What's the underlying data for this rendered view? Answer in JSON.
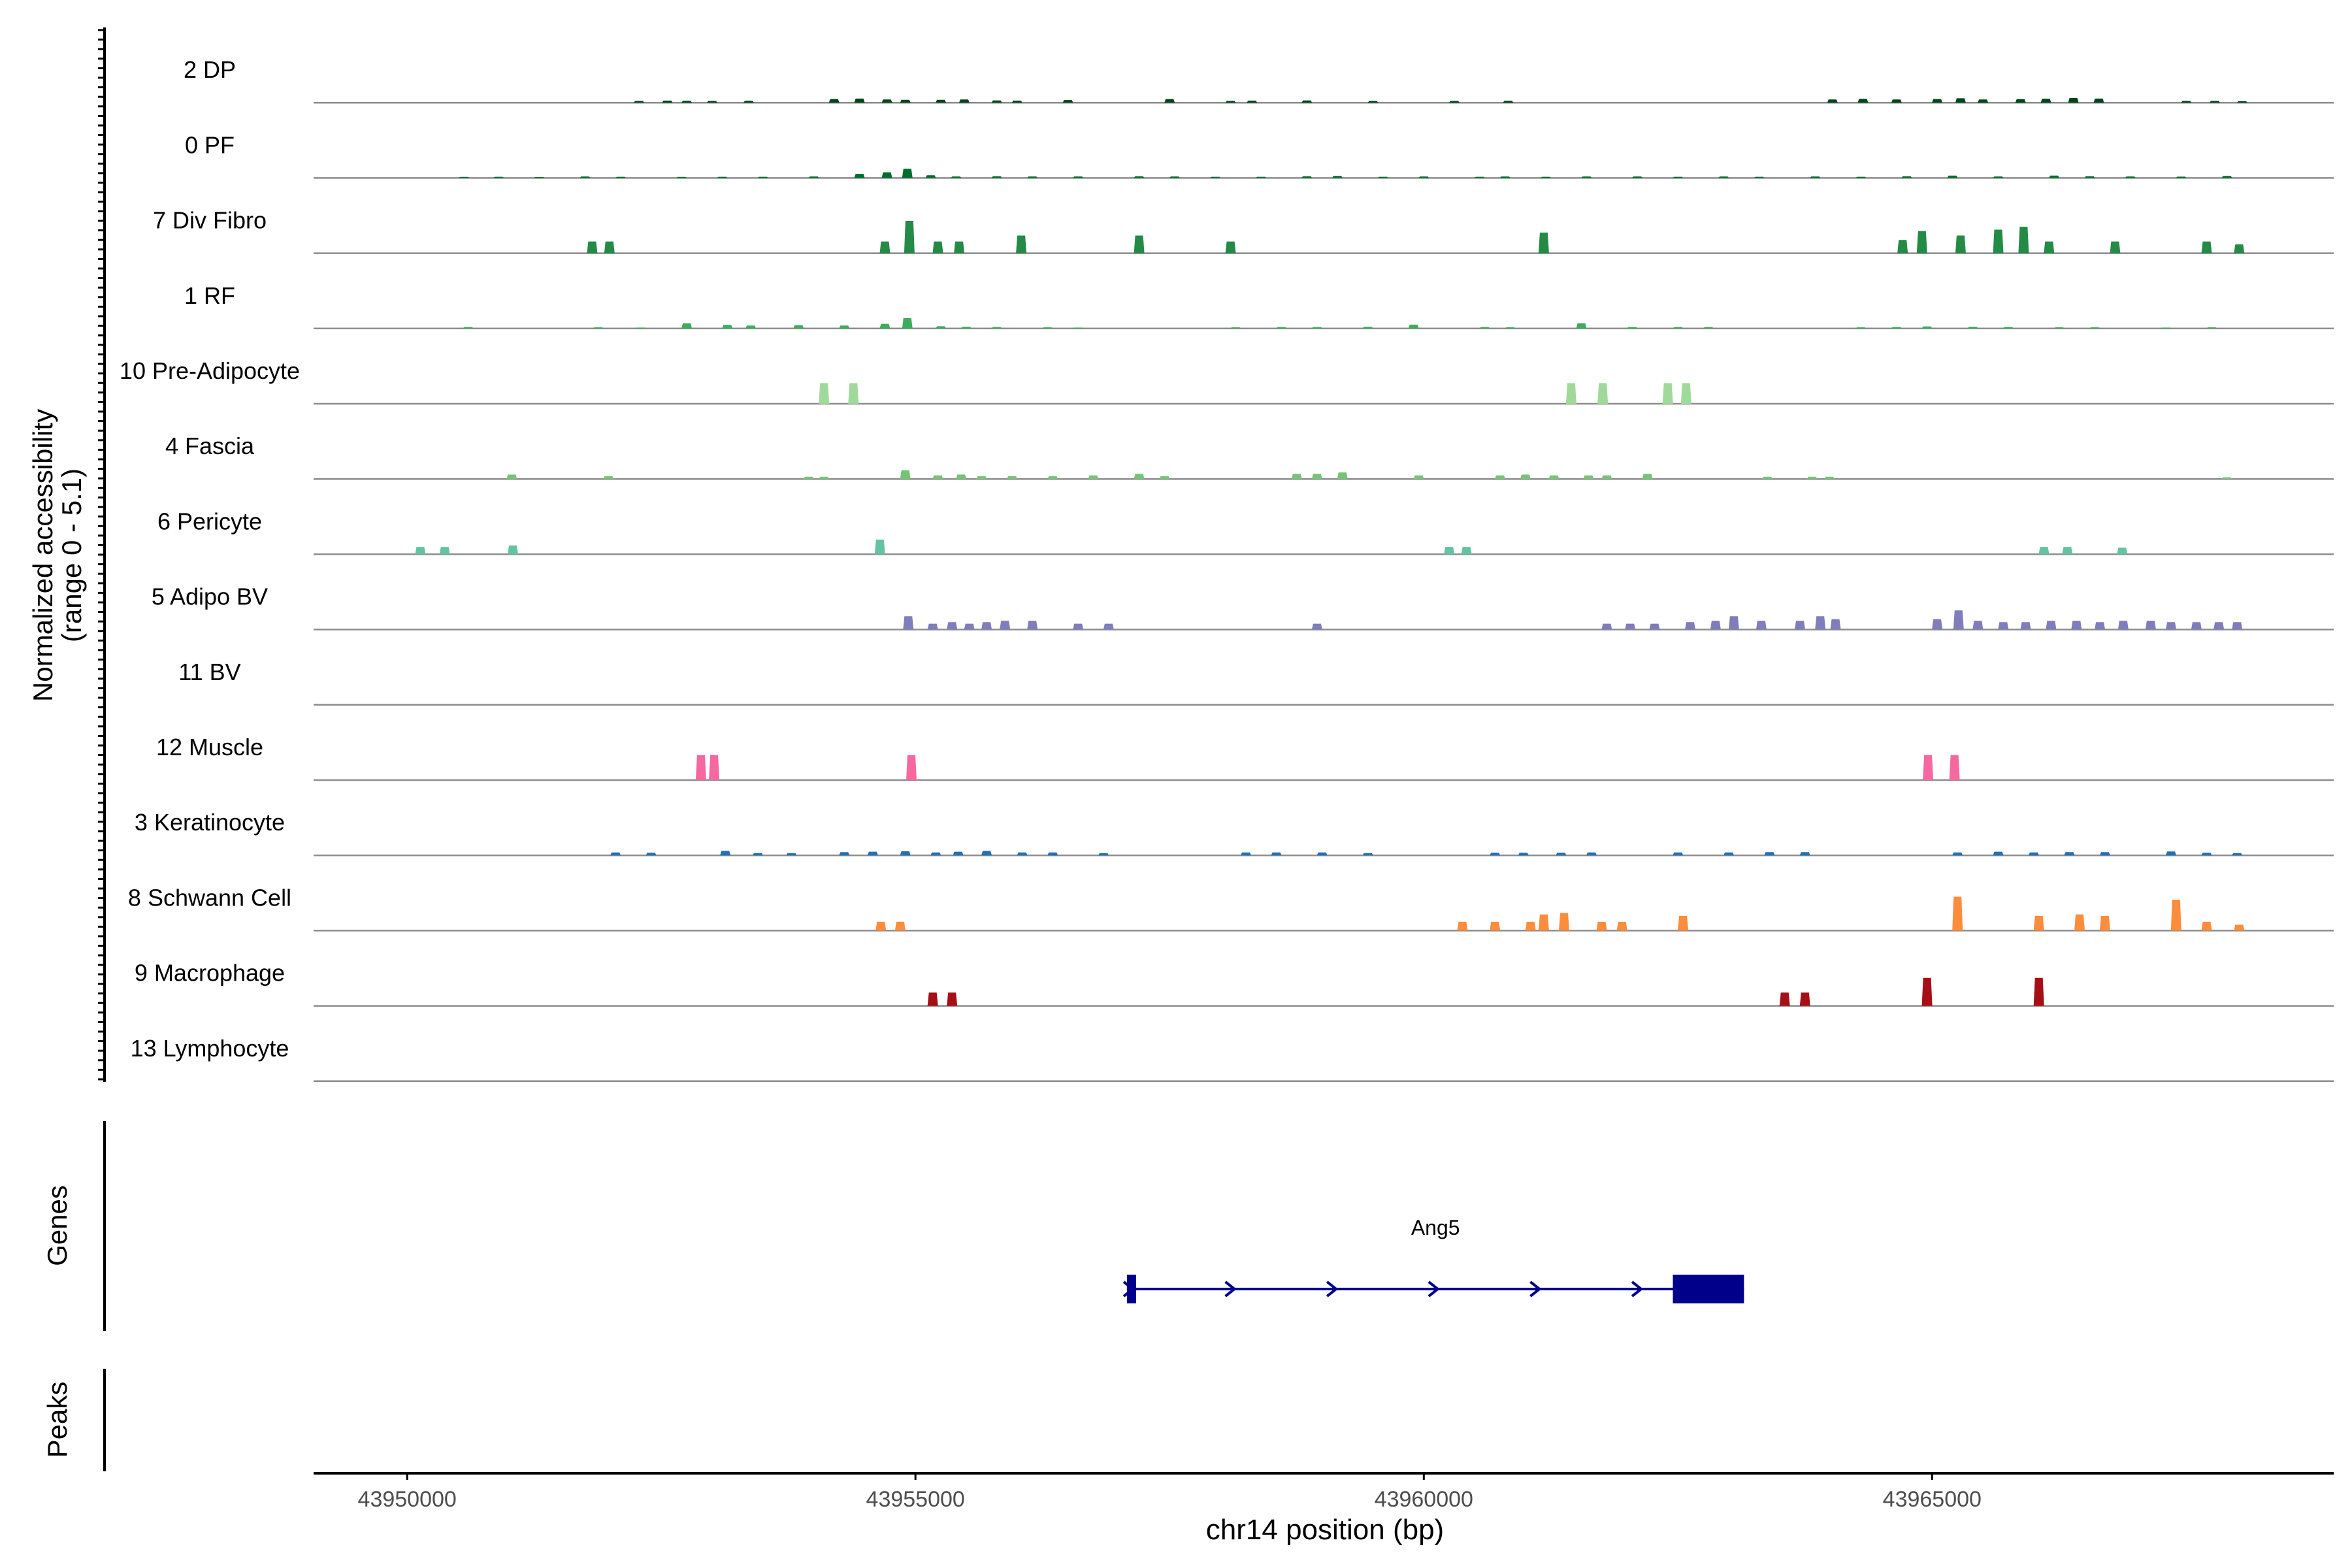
{
  "chart_data": {
    "type": "area",
    "title": "",
    "chromosome": "chr14",
    "xlabel": "chr14 position (bp)",
    "ylabel_line1": "Normalized accessibility",
    "ylabel_line2": "(range 0 - 5.1)",
    "y_range": [
      0,
      5.1
    ],
    "xlim": [
      43949080,
      43968950
    ],
    "x_ticks": [
      43950000,
      43955000,
      43960000,
      43965000
    ],
    "x_tick_labels": [
      "43950000",
      "43955000",
      "43960000",
      "43965000"
    ],
    "genes_label": "Genes",
    "peaks_label": "Peaks",
    "gene": {
      "name": "Ang5",
      "strand": "+",
      "start": 43957080,
      "end": 43963150,
      "exons": [
        [
          43957080,
          43957170
        ],
        [
          43962450,
          43963150
        ]
      ],
      "color": "#00008B"
    },
    "tracks": [
      {
        "name": "2 DP",
        "color": "#00441B",
        "peaks": [
          [
            43952280,
            0.12
          ],
          [
            43952560,
            0.14
          ],
          [
            43952750,
            0.13
          ],
          [
            43953000,
            0.12
          ],
          [
            43953360,
            0.13
          ],
          [
            43954200,
            0.25
          ],
          [
            43954450,
            0.28
          ],
          [
            43954720,
            0.22
          ],
          [
            43954900,
            0.2
          ],
          [
            43955250,
            0.2
          ],
          [
            43955480,
            0.22
          ],
          [
            43955800,
            0.15
          ],
          [
            43956000,
            0.14
          ],
          [
            43956500,
            0.18
          ],
          [
            43957500,
            0.25
          ],
          [
            43958100,
            0.12
          ],
          [
            43958310,
            0.14
          ],
          [
            43958850,
            0.15
          ],
          [
            43959500,
            0.12
          ],
          [
            43960300,
            0.12
          ],
          [
            43960830,
            0.13
          ],
          [
            43964020,
            0.22
          ],
          [
            43964320,
            0.26
          ],
          [
            43964650,
            0.22
          ],
          [
            43965050,
            0.25
          ],
          [
            43965280,
            0.3
          ],
          [
            43965500,
            0.22
          ],
          [
            43965870,
            0.24
          ],
          [
            43966120,
            0.27
          ],
          [
            43966390,
            0.32
          ],
          [
            43966640,
            0.28
          ],
          [
            43967500,
            0.12
          ],
          [
            43967780,
            0.12
          ],
          [
            43968050,
            0.1
          ]
        ]
      },
      {
        "name": "0 PF",
        "color": "#006D2C",
        "peaks": [
          [
            43950560,
            0.07
          ],
          [
            43950900,
            0.08
          ],
          [
            43951300,
            0.06
          ],
          [
            43951750,
            0.1
          ],
          [
            43952100,
            0.08
          ],
          [
            43952700,
            0.07
          ],
          [
            43953100,
            0.08
          ],
          [
            43953500,
            0.08
          ],
          [
            43954000,
            0.1
          ],
          [
            43954450,
            0.28
          ],
          [
            43954720,
            0.38
          ],
          [
            43954920,
            0.62
          ],
          [
            43955150,
            0.18
          ],
          [
            43955400,
            0.1
          ],
          [
            43955800,
            0.12
          ],
          [
            43956150,
            0.1
          ],
          [
            43956600,
            0.1
          ],
          [
            43957200,
            0.12
          ],
          [
            43957550,
            0.1
          ],
          [
            43957950,
            0.08
          ],
          [
            43958400,
            0.08
          ],
          [
            43958850,
            0.12
          ],
          [
            43959150,
            0.14
          ],
          [
            43959600,
            0.08
          ],
          [
            43960000,
            0.1
          ],
          [
            43960550,
            0.08
          ],
          [
            43960800,
            0.1
          ],
          [
            43961200,
            0.08
          ],
          [
            43961600,
            0.1
          ],
          [
            43962100,
            0.1
          ],
          [
            43962500,
            0.08
          ],
          [
            43962950,
            0.1
          ],
          [
            43963300,
            0.08
          ],
          [
            43963850,
            0.1
          ],
          [
            43964300,
            0.08
          ],
          [
            43964750,
            0.12
          ],
          [
            43965200,
            0.16
          ],
          [
            43965650,
            0.1
          ],
          [
            43966200,
            0.16
          ],
          [
            43966550,
            0.12
          ],
          [
            43966950,
            0.1
          ],
          [
            43967450,
            0.09
          ],
          [
            43967900,
            0.14
          ]
        ]
      },
      {
        "name": "7 Div Fibro",
        "color": "#238B45",
        "peaks": [
          [
            43951820,
            0.8
          ],
          [
            43951990,
            0.8
          ],
          [
            43954700,
            0.8
          ],
          [
            43954940,
            2.2
          ],
          [
            43955220,
            0.8
          ],
          [
            43955430,
            0.8
          ],
          [
            43956040,
            1.2
          ],
          [
            43957200,
            1.2
          ],
          [
            43958100,
            0.8
          ],
          [
            43961180,
            1.4
          ],
          [
            43964710,
            0.9
          ],
          [
            43964900,
            1.5
          ],
          [
            43965280,
            1.2
          ],
          [
            43965650,
            1.6
          ],
          [
            43965900,
            1.8
          ],
          [
            43966150,
            0.8
          ],
          [
            43966800,
            0.8
          ],
          [
            43967700,
            0.8
          ],
          [
            43968020,
            0.6
          ]
        ]
      },
      {
        "name": "1 RF",
        "color": "#41AB5D",
        "peaks": [
          [
            43950600,
            0.1
          ],
          [
            43951880,
            0.08
          ],
          [
            43952300,
            0.06
          ],
          [
            43952750,
            0.35
          ],
          [
            43953150,
            0.25
          ],
          [
            43953380,
            0.2
          ],
          [
            43953850,
            0.22
          ],
          [
            43954300,
            0.2
          ],
          [
            43954700,
            0.32
          ],
          [
            43954920,
            0.7
          ],
          [
            43955250,
            0.15
          ],
          [
            43955500,
            0.12
          ],
          [
            43955800,
            0.1
          ],
          [
            43956300,
            0.08
          ],
          [
            43956600,
            0.06
          ],
          [
            43958150,
            0.08
          ],
          [
            43958600,
            0.1
          ],
          [
            43958950,
            0.1
          ],
          [
            43959450,
            0.12
          ],
          [
            43959900,
            0.26
          ],
          [
            43960600,
            0.1
          ],
          [
            43960850,
            0.08
          ],
          [
            43961550,
            0.35
          ],
          [
            43962050,
            0.1
          ],
          [
            43962500,
            0.1
          ],
          [
            43962800,
            0.1
          ],
          [
            43964300,
            0.08
          ],
          [
            43964650,
            0.1
          ],
          [
            43964950,
            0.14
          ],
          [
            43965400,
            0.12
          ],
          [
            43965750,
            0.1
          ],
          [
            43966250,
            0.08
          ],
          [
            43966600,
            0.08
          ],
          [
            43967300,
            0.06
          ],
          [
            43967750,
            0.08
          ]
        ]
      },
      {
        "name": "10 Pre-Adipocyte",
        "color": "#A1D99B",
        "peaks": [
          [
            43954100,
            1.4
          ],
          [
            43954390,
            1.4
          ],
          [
            43961450,
            1.4
          ],
          [
            43961760,
            1.4
          ],
          [
            43962400,
            1.4
          ],
          [
            43962580,
            1.4
          ]
        ]
      },
      {
        "name": "4 Fascia",
        "color": "#74C476",
        "peaks": [
          [
            43951030,
            0.3
          ],
          [
            43951980,
            0.2
          ],
          [
            43953950,
            0.15
          ],
          [
            43954100,
            0.15
          ],
          [
            43954900,
            0.6
          ],
          [
            43955220,
            0.25
          ],
          [
            43955450,
            0.3
          ],
          [
            43955650,
            0.2
          ],
          [
            43955950,
            0.2
          ],
          [
            43956350,
            0.2
          ],
          [
            43956750,
            0.25
          ],
          [
            43957200,
            0.35
          ],
          [
            43957450,
            0.2
          ],
          [
            43958750,
            0.35
          ],
          [
            43958950,
            0.35
          ],
          [
            43959200,
            0.45
          ],
          [
            43959950,
            0.25
          ],
          [
            43960750,
            0.25
          ],
          [
            43961000,
            0.3
          ],
          [
            43961280,
            0.25
          ],
          [
            43961620,
            0.25
          ],
          [
            43961800,
            0.25
          ],
          [
            43962200,
            0.35
          ],
          [
            43963380,
            0.15
          ],
          [
            43963820,
            0.15
          ],
          [
            43963990,
            0.15
          ],
          [
            43967900,
            0.12
          ]
        ]
      },
      {
        "name": "6 Pericyte",
        "color": "#66C2A4",
        "peaks": [
          [
            43950130,
            0.5
          ],
          [
            43950370,
            0.5
          ],
          [
            43951040,
            0.6
          ],
          [
            43954650,
            1.0
          ],
          [
            43960250,
            0.5
          ],
          [
            43960420,
            0.5
          ],
          [
            43966100,
            0.5
          ],
          [
            43966330,
            0.5
          ],
          [
            43966870,
            0.45
          ]
        ]
      },
      {
        "name": "5 Adipo BV",
        "color": "#807DBA",
        "peaks": [
          [
            43954930,
            0.9
          ],
          [
            43955170,
            0.4
          ],
          [
            43955360,
            0.5
          ],
          [
            43955530,
            0.4
          ],
          [
            43955700,
            0.5
          ],
          [
            43955880,
            0.6
          ],
          [
            43956150,
            0.6
          ],
          [
            43956600,
            0.4
          ],
          [
            43956900,
            0.4
          ],
          [
            43958950,
            0.4
          ],
          [
            43961800,
            0.4
          ],
          [
            43962030,
            0.4
          ],
          [
            43962270,
            0.4
          ],
          [
            43962620,
            0.5
          ],
          [
            43962870,
            0.6
          ],
          [
            43963050,
            0.9
          ],
          [
            43963320,
            0.6
          ],
          [
            43963700,
            0.6
          ],
          [
            43963900,
            0.9
          ],
          [
            43964050,
            0.7
          ],
          [
            43965050,
            0.7
          ],
          [
            43965260,
            1.3
          ],
          [
            43965450,
            0.6
          ],
          [
            43965700,
            0.5
          ],
          [
            43965920,
            0.5
          ],
          [
            43966170,
            0.6
          ],
          [
            43966420,
            0.6
          ],
          [
            43966650,
            0.5
          ],
          [
            43966880,
            0.6
          ],
          [
            43967150,
            0.6
          ],
          [
            43967350,
            0.5
          ],
          [
            43967600,
            0.5
          ],
          [
            43967820,
            0.5
          ],
          [
            43968000,
            0.5
          ]
        ]
      },
      {
        "name": "11 BV",
        "color": "#3F007D",
        "peaks": []
      },
      {
        "name": "12 Muscle",
        "color": "#F768A1",
        "peaks": [
          [
            43952890,
            1.7
          ],
          [
            43953020,
            1.7
          ],
          [
            43954960,
            1.7
          ],
          [
            43964960,
            1.7
          ],
          [
            43965220,
            1.7
          ]
        ]
      },
      {
        "name": "3 Keratinocyte",
        "color": "#2171B5",
        "peaks": [
          [
            43952050,
            0.2
          ],
          [
            43952400,
            0.18
          ],
          [
            43953130,
            0.3
          ],
          [
            43953450,
            0.15
          ],
          [
            43953780,
            0.15
          ],
          [
            43954300,
            0.22
          ],
          [
            43954580,
            0.25
          ],
          [
            43954900,
            0.28
          ],
          [
            43955200,
            0.2
          ],
          [
            43955420,
            0.25
          ],
          [
            43955700,
            0.3
          ],
          [
            43956050,
            0.2
          ],
          [
            43956350,
            0.2
          ],
          [
            43956850,
            0.15
          ],
          [
            43958250,
            0.2
          ],
          [
            43958550,
            0.2
          ],
          [
            43959000,
            0.2
          ],
          [
            43959450,
            0.15
          ],
          [
            43960700,
            0.18
          ],
          [
            43960980,
            0.18
          ],
          [
            43961350,
            0.18
          ],
          [
            43961650,
            0.2
          ],
          [
            43962500,
            0.2
          ],
          [
            43963000,
            0.2
          ],
          [
            43963400,
            0.22
          ],
          [
            43963750,
            0.22
          ],
          [
            43965250,
            0.2
          ],
          [
            43965650,
            0.25
          ],
          [
            43966000,
            0.2
          ],
          [
            43966350,
            0.22
          ],
          [
            43966700,
            0.22
          ],
          [
            43967350,
            0.26
          ],
          [
            43967700,
            0.18
          ],
          [
            43968000,
            0.15
          ]
        ]
      },
      {
        "name": "8 Schwann Cell",
        "color": "#FD8D3C",
        "peaks": [
          [
            43954660,
            0.6
          ],
          [
            43954850,
            0.6
          ],
          [
            43960380,
            0.6
          ],
          [
            43960700,
            0.6
          ],
          [
            43961050,
            0.6
          ],
          [
            43961180,
            1.1
          ],
          [
            43961380,
            1.2
          ],
          [
            43961750,
            0.6
          ],
          [
            43961950,
            0.6
          ],
          [
            43962550,
            1.0
          ],
          [
            43965250,
            2.3
          ],
          [
            43966050,
            1.0
          ],
          [
            43966450,
            1.1
          ],
          [
            43966700,
            1.0
          ],
          [
            43967400,
            2.1
          ],
          [
            43967700,
            0.6
          ],
          [
            43968020,
            0.4
          ]
        ]
      },
      {
        "name": "9 Macrophage",
        "color": "#A50F15",
        "peaks": [
          [
            43955170,
            0.9
          ],
          [
            43955360,
            0.9
          ],
          [
            43963550,
            0.9
          ],
          [
            43963750,
            0.9
          ],
          [
            43964950,
            1.9
          ],
          [
            43966050,
            1.9
          ]
        ]
      },
      {
        "name": "13 Lymphocyte",
        "color": "#BD0026",
        "peaks": []
      }
    ]
  }
}
